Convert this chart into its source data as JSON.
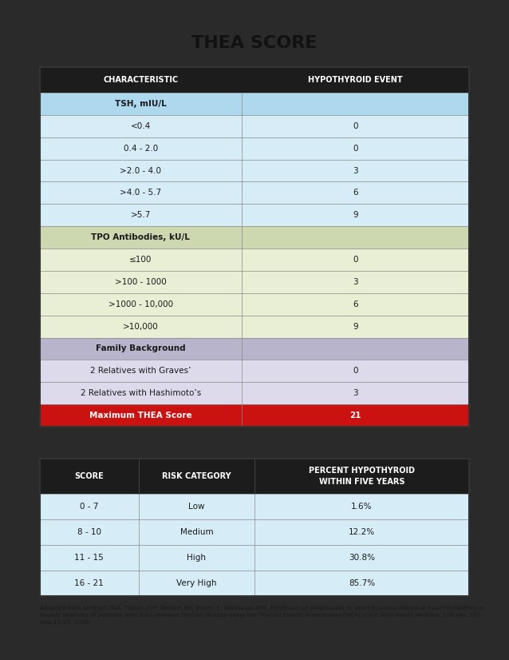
{
  "title": "THEA SCORE",
  "page_bg": "#2a2a2a",
  "white_bg": "#ffffff",
  "table1": {
    "header_bg": "#1c1c1c",
    "header_text": "#ffffff",
    "col1_header": "CHARACTERISTIC",
    "col2_header": "HYPOTHYROID EVENT",
    "rows": [
      {
        "char": "TSH, mIU/L",
        "val": "",
        "bg": "#aed8ee",
        "bold": true,
        "red_row": false
      },
      {
        "char": "<0.4",
        "val": "0",
        "bg": "#d6ecf7",
        "bold": false,
        "red_row": false
      },
      {
        "char": "0.4 - 2.0",
        "val": "0",
        "bg": "#d6ecf7",
        "bold": false,
        "red_row": false
      },
      {
        "char": ">2.0 - 4.0",
        "val": "3",
        "bg": "#d6ecf7",
        "bold": false,
        "red_row": false
      },
      {
        "char": ">4.0 - 5.7",
        "val": "6",
        "bg": "#d6ecf7",
        "bold": false,
        "red_row": false
      },
      {
        "char": ">5.7",
        "val": "9",
        "bg": "#d6ecf7",
        "bold": false,
        "red_row": false
      },
      {
        "char": "TPO Antibodies, kU/L",
        "val": "",
        "bg": "#cdd8b0",
        "bold": true,
        "red_row": false
      },
      {
        "char": "≤100",
        "val": "0",
        "bg": "#e8efd5",
        "bold": false,
        "red_row": false
      },
      {
        "char": ">100 - 1000",
        "val": "3",
        "bg": "#e8efd5",
        "bold": false,
        "red_row": false
      },
      {
        "char": ">1000 - 10,000",
        "val": "6",
        "bg": "#e8efd5",
        "bold": false,
        "red_row": false
      },
      {
        "char": ">10,000",
        "val": "9",
        "bg": "#e8efd5",
        "bold": false,
        "red_row": false
      },
      {
        "char": "Family Background",
        "val": "",
        "bg": "#b8b4cc",
        "bold": true,
        "red_row": false
      },
      {
        "char": "2 Relatives with Graves’",
        "val": "0",
        "bg": "#dddaec",
        "bold": false,
        "red_row": false
      },
      {
        "char": "2 Relatives with Hashimoto’s",
        "val": "3",
        "bg": "#dddaec",
        "bold": false,
        "red_row": false
      },
      {
        "char": "Maximum THEA Score",
        "val": "21",
        "bg": "#cc1111",
        "bold": true,
        "red_row": true
      }
    ]
  },
  "table2": {
    "header_bg": "#1c1c1c",
    "header_text": "#ffffff",
    "col1_header": "SCORE",
    "col2_header": "RISK CATEGORY",
    "col3_header": "PERCENT HYPOTHYROID\nWITHIN FIVE YEARS",
    "rows": [
      {
        "score": "0 - 7",
        "risk": "Low",
        "pct": "1.6%",
        "bg": "#d6ecf7"
      },
      {
        "score": "8 - 10",
        "risk": "Medium",
        "pct": "12.2%",
        "bg": "#d6ecf7"
      },
      {
        "score": "11 - 15",
        "risk": "High",
        "pct": "30.8%",
        "bg": "#d6ecf7"
      },
      {
        "score": "16 - 21",
        "risk": "Very High",
        "pct": "85.7%",
        "bg": "#d6ecf7"
      }
    ]
  },
  "footnote": "Adapted from Strieder TGA, Tijssen JGP, Wenzel BE, Enden E, Wiersinga WM, Prediction of progression to overt hypothyroidism or hyperthyroidism in\nfemale relatives of patients with auto-immune thyroid disease using the Thyroid Events Amsterdam(THEA) score Arch Intern Med/Vol. 168 (No. 15),\nAug 11/25, 2008."
}
